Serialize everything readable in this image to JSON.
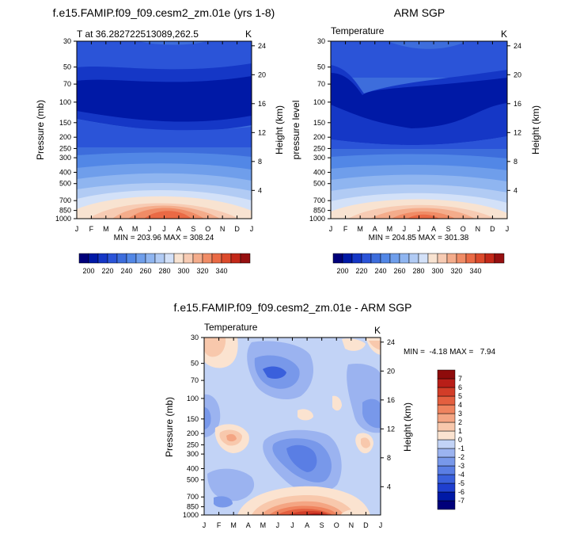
{
  "figure_title": "f.e15.FAMIP.f09_f09.cesm2_zm.01e - ARM SGP",
  "chart_data": [
    {
      "type": "contour",
      "title": "f.e15.FAMIP.f09_f09.cesm2_zm.01e (yrs 1-8)",
      "subtitle_left": "T at 36.282722513089,262.5",
      "subtitle_right": "K",
      "xlabel": "",
      "ylabel": "Pressure (mb)",
      "right_label": "Height (km)",
      "x_ticks": [
        "J",
        "F",
        "M",
        "A",
        "M",
        "J",
        "J",
        "A",
        "S",
        "O",
        "N",
        "D",
        "J"
      ],
      "y_ticks": [
        "30",
        "50",
        "70",
        "100",
        "150",
        "200",
        "250",
        "300",
        "400",
        "500",
        "700",
        "850",
        "1000"
      ],
      "right_ticks": [
        "24",
        "20",
        "16",
        "12",
        "8",
        "4"
      ],
      "stats": "MIN = 203.96 MAX = 308.24",
      "colorbar": {
        "orientation": "horizontal",
        "tick_labels": [
          "200",
          "220",
          "240",
          "260",
          "280",
          "300",
          "320",
          "340"
        ],
        "n_colors": 18
      }
    },
    {
      "type": "contour",
      "title": "ARM SGP",
      "subtitle_left": "Temperature",
      "subtitle_right": "K",
      "xlabel": "",
      "ylabel": "pressure level",
      "right_label": "Height (km)",
      "x_ticks": [
        "J",
        "F",
        "M",
        "A",
        "M",
        "J",
        "J",
        "A",
        "S",
        "O",
        "N",
        "D",
        "J"
      ],
      "y_ticks": [
        "30",
        "50",
        "70",
        "100",
        "150",
        "200",
        "250",
        "300",
        "400",
        "500",
        "700",
        "850",
        "1000"
      ],
      "right_ticks": [
        "24",
        "20",
        "16",
        "12",
        "8",
        "4"
      ],
      "stats": "MIN = 204.85 MAX = 301.38",
      "colorbar": {
        "orientation": "horizontal",
        "tick_labels": [
          "200",
          "220",
          "240",
          "260",
          "280",
          "300",
          "320",
          "340"
        ],
        "n_colors": 18
      }
    },
    {
      "type": "contour",
      "title": "f.e15.FAMIP.f09_f09.cesm2_zm.01e - ARM SGP",
      "subtitle_left": "Temperature",
      "subtitle_right": "K",
      "xlabel": "",
      "ylabel": "Pressure (mb)",
      "right_label": "Height (km)",
      "x_ticks": [
        "J",
        "F",
        "M",
        "A",
        "M",
        "J",
        "J",
        "A",
        "S",
        "O",
        "N",
        "D",
        "J"
      ],
      "y_ticks": [
        "30",
        "50",
        "70",
        "100",
        "150",
        "200",
        "250",
        "300",
        "400",
        "500",
        "700",
        "850",
        "1000"
      ],
      "right_ticks": [
        "24",
        "20",
        "16",
        "12",
        "8",
        "4"
      ],
      "stats": "MIN =  -4.18 MAX =   7.94",
      "colorbar": {
        "orientation": "vertical",
        "tick_labels": [
          "7",
          "6",
          "5",
          "4",
          "3",
          "2",
          "1",
          "0",
          "-1",
          "-2",
          "-3",
          "-4",
          "-5",
          "-6",
          "-7"
        ],
        "n_colors": 16
      }
    }
  ],
  "colors": {
    "temperature_scale": [
      "#00007a",
      "#0019a6",
      "#1537c6",
      "#2b54d8",
      "#3d6ddc",
      "#5287e6",
      "#6f9eeb",
      "#8fb5f0",
      "#b1cbf4",
      "#d3e1f8",
      "#f8e3d1",
      "#f7cbb3",
      "#f4ac8b",
      "#f08c66",
      "#ea6a45",
      "#dc4a2c",
      "#c32819",
      "#960f10"
    ],
    "difference_scale": [
      "#00007a",
      "#0019a6",
      "#1f3fcf",
      "#3a60dc",
      "#5a7ee4",
      "#7898ea",
      "#9bb3f0",
      "#c2d3f6",
      "#fbe3d0",
      "#f8c8ac",
      "#f4a583",
      "#ef835e",
      "#e45f3f",
      "#d23d28",
      "#b81e18",
      "#8e0b0b"
    ]
  }
}
